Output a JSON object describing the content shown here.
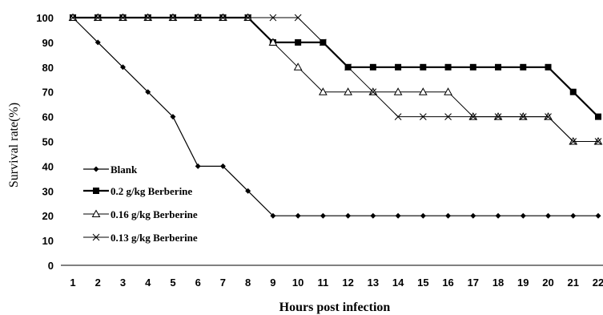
{
  "chart_data": {
    "type": "line",
    "title": "",
    "xlabel": "Hours post infection",
    "ylabel": "Survival rate(%)",
    "x": [
      1,
      2,
      3,
      4,
      5,
      6,
      7,
      8,
      9,
      10,
      11,
      12,
      13,
      14,
      15,
      16,
      17,
      18,
      19,
      20,
      21,
      22
    ],
    "xlim": [
      1,
      22
    ],
    "ylim": [
      0,
      100
    ],
    "y_ticks": [
      0,
      10,
      20,
      30,
      40,
      50,
      60,
      70,
      80,
      90,
      100
    ],
    "grid": false,
    "legend_position": "left",
    "series": [
      {
        "name": "Blank",
        "marker": "diamond-filled",
        "values": [
          100,
          90,
          80,
          70,
          60,
          40,
          40,
          30,
          20,
          20,
          20,
          20,
          20,
          20,
          20,
          20,
          20,
          20,
          20,
          20,
          20,
          20
        ]
      },
      {
        "name": "0.2 g/kg Berberine",
        "marker": "square-filled",
        "values": [
          100,
          100,
          100,
          100,
          100,
          100,
          100,
          100,
          90,
          90,
          90,
          80,
          80,
          80,
          80,
          80,
          80,
          80,
          80,
          80,
          70,
          60
        ]
      },
      {
        "name": "0.16 g/kg Berberine",
        "marker": "triangle-open",
        "values": [
          100,
          100,
          100,
          100,
          100,
          100,
          100,
          100,
          90,
          80,
          70,
          70,
          70,
          70,
          70,
          70,
          60,
          60,
          60,
          60,
          50,
          50
        ]
      },
      {
        "name": "0.13 g/kg Berberine",
        "marker": "x",
        "values": [
          100,
          100,
          100,
          100,
          100,
          100,
          100,
          100,
          100,
          100,
          90,
          80,
          70,
          60,
          60,
          60,
          60,
          60,
          60,
          60,
          50,
          50
        ]
      }
    ]
  }
}
